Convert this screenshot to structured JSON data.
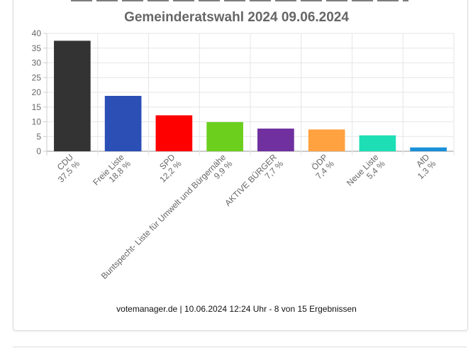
{
  "chart_data": {
    "type": "bar",
    "title": "Gemeinderatswahl 2024 09.06.2024",
    "categories": [
      "CDU",
      "Freie Liste",
      "SPD",
      "Buntspecht- Liste für Umwelt und Bürgernähe",
      "AKTIVE BÜRGER",
      "ÖDP",
      "Neue Liste",
      "AfD"
    ],
    "value_labels": [
      "37,5 %",
      "18,8 %",
      "12,2 %",
      "9,9 %",
      "7,7 %",
      "7,4 %",
      "5,4 %",
      "1,3 %"
    ],
    "values": [
      37.5,
      18.8,
      12.2,
      9.9,
      7.7,
      7.4,
      5.4,
      1.3
    ],
    "colors": [
      "#333333",
      "#2b4fb5",
      "#ff0000",
      "#6ccf1e",
      "#7030a0",
      "#ffa23f",
      "#1ddeb4",
      "#1a90d9"
    ],
    "ylim": [
      0,
      40
    ],
    "yticks": [
      0,
      5,
      10,
      15,
      20,
      25,
      30,
      35,
      40
    ],
    "grid": true,
    "legend": "none",
    "xlabel": "",
    "ylabel": ""
  },
  "footer": "votemanager.de | 10.06.2024 12:24 Uhr - 8 von 15 Ergebnissen"
}
